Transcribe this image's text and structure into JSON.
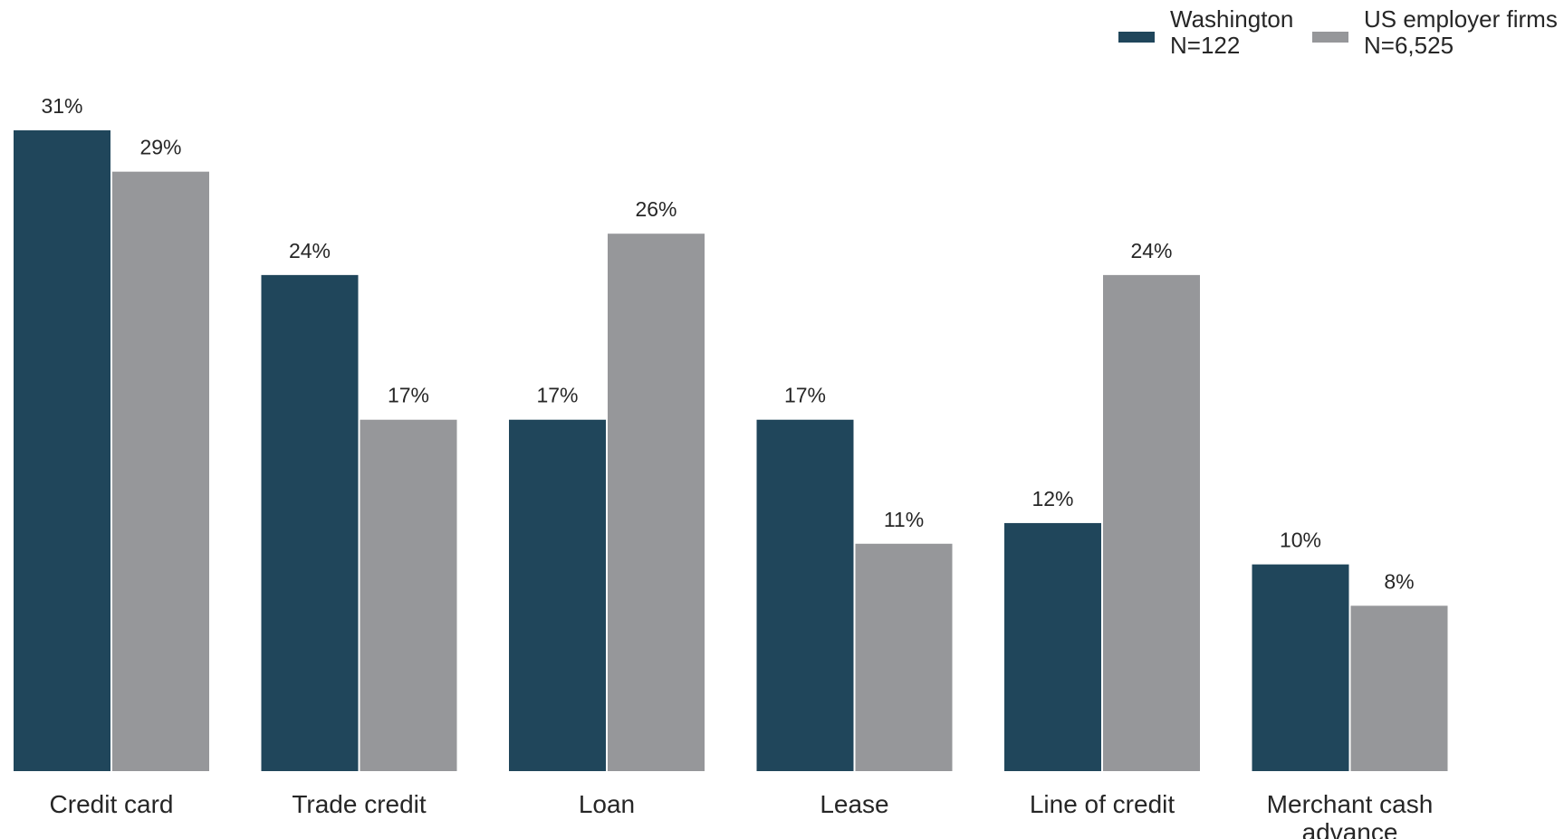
{
  "chart_data": {
    "type": "bar",
    "categories": [
      [
        "Credit card"
      ],
      [
        "Trade credit"
      ],
      [
        "Loan"
      ],
      [
        "Lease"
      ],
      [
        "Line of credit"
      ],
      [
        "Merchant cash",
        "advance"
      ]
    ],
    "series": [
      {
        "name_lines": [
          "Washington",
          "N=122"
        ],
        "color": "#20465b",
        "values": [
          31,
          24,
          17,
          17,
          12,
          10
        ],
        "labels": [
          "31%",
          "24%",
          "17%",
          "17%",
          "12%",
          "10%"
        ]
      },
      {
        "name_lines": [
          "US employer firms",
          "N=6,525"
        ],
        "color": "#96979a",
        "values": [
          29,
          17,
          26,
          11,
          24,
          8
        ],
        "labels": [
          "29%",
          "17%",
          "26%",
          "11%",
          "24%",
          "8%"
        ]
      }
    ],
    "ylim": [
      0,
      31
    ],
    "grid": false,
    "legend_position": "top-right",
    "title": "",
    "xlabel": "",
    "ylabel": ""
  }
}
